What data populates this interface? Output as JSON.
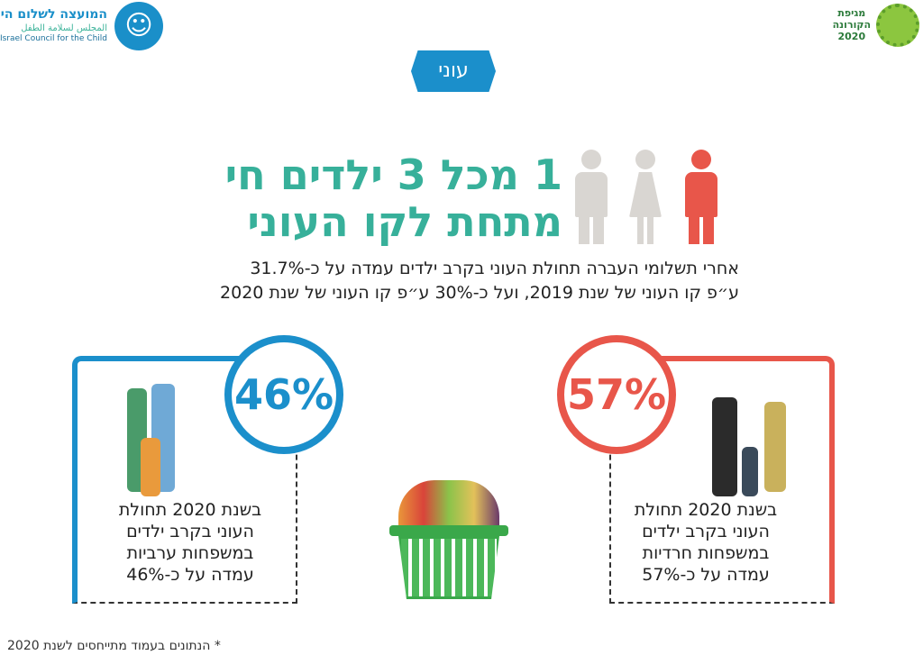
{
  "logos": {
    "council_hebrew": "המועצה לשלום הילד",
    "council_arabic": "المجلس لسلامة الطفل",
    "council_english": "Israel Council for the Child",
    "corona_line1": "מגיפת",
    "corona_line2": "הקורונה",
    "corona_line3": "2020"
  },
  "badge": "עוני",
  "headline": {
    "line1": "1 מכל 3 ילדים חי",
    "line2": "מתחת לקו העוני"
  },
  "subtitle": {
    "line1": "אחרי תשלומי העברה תחולת העוני בקרב ילדים עמדה על כ-31.7%",
    "line2": "ע״פ קו העוני של שנת 2019, ועל כ-30% ע״פ קו העוני של שנת 2020"
  },
  "cards": [
    {
      "percent": "46%",
      "value": 46,
      "color": "#1b8fcb",
      "text": [
        "בשנת 2020 תחולת",
        "העוני בקרב ילדים",
        "במשפחות ערביות",
        "עמדה על כ-46%"
      ]
    },
    {
      "percent": "57%",
      "value": 57,
      "color": "#e8564a",
      "text": [
        "בשנת 2020 תחולת",
        "העוני בקרב ילדים",
        "במשפחות חרדיות",
        "עמדה על כ-57%"
      ]
    }
  ],
  "colors": {
    "accent_teal": "#37b09a",
    "blue": "#1b8fcb",
    "red": "#e8564a",
    "gray": "#d9d6d2"
  },
  "footnote": "* הנתונים בעמוד מתייחסים לשנת 2020"
}
